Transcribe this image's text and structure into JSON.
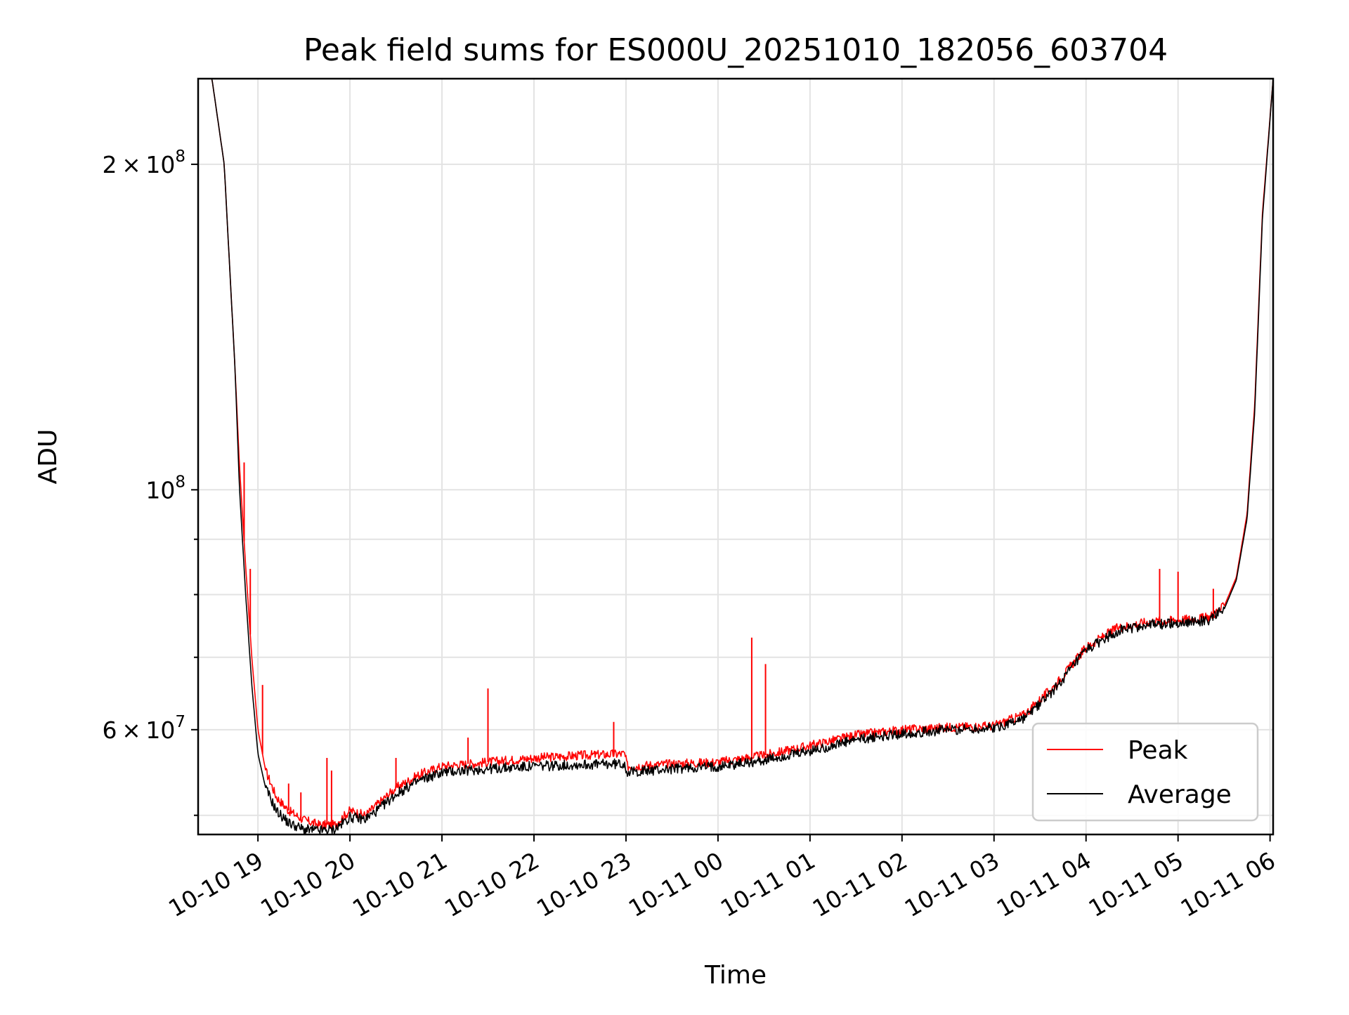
{
  "chart_data": {
    "type": "line",
    "title": "Peak field sums for ES000U_20251010_182056_603704",
    "xlabel": "Time",
    "ylabel": "ADU",
    "y_scale": "log",
    "ylim": [
      48000000,
      240000000
    ],
    "xlim": [
      "2025-10-10 18:21",
      "2025-10-11 06:02"
    ],
    "x_ticks": [
      "10-10 19",
      "10-10 20",
      "10-10 21",
      "10-10 22",
      "10-10 23",
      "10-11 00",
      "10-11 01",
      "10-11 02",
      "10-11 03",
      "10-11 04",
      "10-11 05",
      "10-11 06"
    ],
    "y_ticks": [
      {
        "value": 200000000,
        "mantissa": "2",
        "exponent": "8"
      },
      {
        "value": 100000000,
        "mantissa": "",
        "exponent": "8"
      },
      {
        "value": 60000000,
        "mantissa": "6",
        "exponent": "7"
      }
    ],
    "y_minor_ticks": [
      50000000,
      70000000,
      80000000,
      90000000,
      300000000
    ],
    "grid": true,
    "legend_position": "lower-right",
    "series": [
      {
        "name": "Peak",
        "color": "#ff0000",
        "x": [
          "2025-10-10 18:21",
          "2025-10-10 18:30",
          "2025-10-10 18:38",
          "2025-10-10 18:45",
          "2025-10-10 18:48",
          "2025-10-10 18:52",
          "2025-10-10 18:56",
          "2025-10-10 19:00",
          "2025-10-10 19:05",
          "2025-10-10 19:12",
          "2025-10-10 19:20",
          "2025-10-10 19:30",
          "2025-10-10 19:40",
          "2025-10-10 19:50",
          "2025-10-10 20:00",
          "2025-10-10 20:10",
          "2025-10-10 20:20",
          "2025-10-10 20:30",
          "2025-10-10 20:45",
          "2025-10-10 21:00",
          "2025-10-10 21:30",
          "2025-10-10 22:00",
          "2025-10-10 22:30",
          "2025-10-10 22:59",
          "2025-10-10 23:01",
          "2025-10-10 23:30",
          "2025-10-11 00:00",
          "2025-10-11 00:30",
          "2025-10-11 01:00",
          "2025-10-11 01:30",
          "2025-10-11 02:00",
          "2025-10-11 02:30",
          "2025-10-11 03:00",
          "2025-10-11 03:20",
          "2025-10-11 03:40",
          "2025-10-11 04:00",
          "2025-10-11 04:20",
          "2025-10-11 04:40",
          "2025-10-11 05:00",
          "2025-10-11 05:20",
          "2025-10-11 05:30",
          "2025-10-11 05:38",
          "2025-10-11 05:45",
          "2025-10-11 05:50",
          "2025-10-11 05:55",
          "2025-10-11 06:02"
        ],
        "y": [
          240000000,
          240000000,
          200000000,
          130000000,
          105000000,
          85000000,
          70000000,
          60000000,
          55000000,
          52000000,
          50500000,
          49500000,
          49000000,
          49000000,
          50500000,
          50000000,
          51500000,
          53000000,
          54500000,
          55500000,
          56000000,
          56500000,
          56800000,
          57000000,
          55500000,
          55800000,
          56000000,
          56800000,
          58000000,
          59300000,
          60000000,
          60300000,
          60500000,
          62000000,
          66000000,
          71500000,
          74500000,
          75500000,
          75800000,
          76200000,
          78000000,
          83000000,
          95000000,
          120000000,
          180000000,
          240000000
        ]
      },
      {
        "name": "Average",
        "color": "#000000",
        "x": [
          "2025-10-10 18:21",
          "2025-10-10 18:30",
          "2025-10-10 18:38",
          "2025-10-10 18:45",
          "2025-10-10 18:48",
          "2025-10-10 18:52",
          "2025-10-10 18:56",
          "2025-10-10 19:00",
          "2025-10-10 19:05",
          "2025-10-10 19:12",
          "2025-10-10 19:20",
          "2025-10-10 19:30",
          "2025-10-10 19:40",
          "2025-10-10 19:50",
          "2025-10-10 20:00",
          "2025-10-10 20:10",
          "2025-10-10 20:20",
          "2025-10-10 20:30",
          "2025-10-10 20:45",
          "2025-10-10 21:00",
          "2025-10-10 21:30",
          "2025-10-10 22:00",
          "2025-10-10 22:30",
          "2025-10-10 22:59",
          "2025-10-10 23:01",
          "2025-10-10 23:30",
          "2025-10-11 00:00",
          "2025-10-11 00:30",
          "2025-10-11 01:00",
          "2025-10-11 01:30",
          "2025-10-11 02:00",
          "2025-10-11 02:30",
          "2025-10-11 03:00",
          "2025-10-11 03:20",
          "2025-10-11 03:40",
          "2025-10-11 04:00",
          "2025-10-11 04:20",
          "2025-10-11 04:40",
          "2025-10-11 05:00",
          "2025-10-11 05:20",
          "2025-10-11 05:30",
          "2025-10-11 05:38",
          "2025-10-11 05:45",
          "2025-10-11 05:50",
          "2025-10-11 05:55",
          "2025-10-11 06:02"
        ],
        "y": [
          240000000,
          240000000,
          200000000,
          130000000,
          100000000,
          80000000,
          66000000,
          57000000,
          53000000,
          50500000,
          49200000,
          48500000,
          48400000,
          48500000,
          49800000,
          49600000,
          50800000,
          52300000,
          53800000,
          54800000,
          55200000,
          55500000,
          55700000,
          55800000,
          54800000,
          55200000,
          55500000,
          56200000,
          57300000,
          58700000,
          59500000,
          60000000,
          60200000,
          61500000,
          65500000,
          71000000,
          74000000,
          75000000,
          75300000,
          75800000,
          77500000,
          82500000,
          94000000,
          118000000,
          178000000,
          240000000
        ]
      }
    ],
    "annotations": [
      {
        "series": "Peak",
        "x": "2025-10-10 18:51",
        "y": 106000000
      },
      {
        "series": "Peak",
        "x": "2025-10-10 18:55",
        "y": 84500000
      },
      {
        "series": "Peak",
        "x": "2025-10-10 19:03",
        "y": 66000000
      },
      {
        "series": "Peak",
        "x": "2025-10-10 19:20",
        "y": 53500000
      },
      {
        "series": "Peak",
        "x": "2025-10-10 19:28",
        "y": 52500000
      },
      {
        "series": "Peak",
        "x": "2025-10-10 19:45",
        "y": 56500000
      },
      {
        "series": "Peak",
        "x": "2025-10-10 19:48",
        "y": 55000000
      },
      {
        "series": "Peak",
        "x": "2025-10-10 20:30",
        "y": 56500000
      },
      {
        "series": "Peak",
        "x": "2025-10-10 21:17",
        "y": 59000000
      },
      {
        "series": "Peak",
        "x": "2025-10-10 21:30",
        "y": 65500000
      },
      {
        "series": "Peak",
        "x": "2025-10-10 22:52",
        "y": 61000000
      },
      {
        "series": "Peak",
        "x": "2025-10-11 00:22",
        "y": 73000000
      },
      {
        "series": "Peak",
        "x": "2025-10-11 00:31",
        "y": 69000000
      },
      {
        "series": "Peak",
        "x": "2025-10-11 04:48",
        "y": 84500000
      },
      {
        "series": "Peak",
        "x": "2025-10-11 05:00",
        "y": 84000000
      },
      {
        "series": "Peak",
        "x": "2025-10-11 05:23",
        "y": 81000000
      }
    ]
  }
}
